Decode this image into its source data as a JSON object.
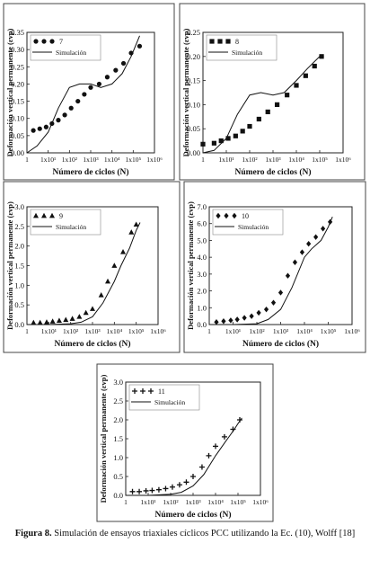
{
  "caption": {
    "label": "Figura 8.",
    "text": "Simulación de ensayos triaxiales cíclicos PCC utilizando la Ec. (10), Wolff [18]"
  },
  "colors": {
    "axis": "#222222",
    "marker": "#111111",
    "line": "#111111"
  },
  "chart_data": [
    {
      "type": "scatter",
      "ylabel": "Deformación vertical permanente (εvp)",
      "xlabel": "Número de ciclos (N)",
      "xscale": "log",
      "xlim": [
        1,
        1000000
      ],
      "xticks": [
        "1",
        "1x10¹",
        "1x10²",
        "1x10³",
        "1x10⁴",
        "1x10⁵",
        "1x10⁶"
      ],
      "ylim": [
        0,
        0.35
      ],
      "yticks": [
        "0.00",
        "0.05",
        "0.10",
        "0.15",
        "0.20",
        "0.25",
        "0.30",
        "0.35"
      ],
      "legend_position": "top-left",
      "series": [
        {
          "name": "7",
          "marker": "circle",
          "x": [
            2,
            4,
            8,
            15,
            30,
            60,
            120,
            250,
            500,
            1000,
            2500,
            6000,
            15000,
            35000,
            80000,
            200000
          ],
          "y": [
            0.065,
            0.07,
            0.075,
            0.085,
            0.095,
            0.11,
            0.13,
            0.15,
            0.17,
            0.19,
            0.2,
            0.22,
            0.24,
            0.26,
            0.29,
            0.31
          ]
        },
        {
          "name": "Simulación",
          "marker": "line",
          "x": [
            1,
            3,
            10,
            30,
            100,
            300,
            1000,
            3000,
            10000,
            30000,
            80000,
            200000
          ],
          "y": [
            0.0,
            0.02,
            0.06,
            0.13,
            0.19,
            0.2,
            0.2,
            0.19,
            0.2,
            0.23,
            0.28,
            0.34
          ]
        }
      ]
    },
    {
      "type": "scatter",
      "ylabel": "Deformación vertical permanente (εvp)",
      "xlabel": "Número de ciclos (N)",
      "xscale": "log",
      "xlim": [
        1,
        1000000
      ],
      "xticks": [
        "1",
        "1x10¹",
        "1x10²",
        "1x10³",
        "1x10⁴",
        "1x10⁵",
        "1x10⁶"
      ],
      "ylim": [
        0,
        0.25
      ],
      "yticks": [
        "0.00",
        "0.05",
        "0.10",
        "0.15",
        "0.20",
        "0.25"
      ],
      "legend_position": "top-left",
      "series": [
        {
          "name": "8",
          "marker": "square",
          "x": [
            1,
            3,
            6,
            12,
            25,
            50,
            100,
            250,
            600,
            1500,
            4000,
            10000,
            25000,
            60000,
            120000
          ],
          "y": [
            0.018,
            0.02,
            0.025,
            0.03,
            0.035,
            0.045,
            0.055,
            0.07,
            0.085,
            0.1,
            0.12,
            0.14,
            0.16,
            0.18,
            0.2
          ]
        },
        {
          "name": "Simulación",
          "marker": "line",
          "x": [
            1,
            3,
            10,
            30,
            100,
            300,
            1000,
            3000,
            10000,
            30000,
            100000,
            150000
          ],
          "y": [
            0.0,
            0.005,
            0.03,
            0.08,
            0.12,
            0.125,
            0.12,
            0.125,
            0.15,
            0.175,
            0.2,
            0.2
          ]
        }
      ]
    },
    {
      "type": "scatter",
      "ylabel": "Deformación vertical permanente (εvp)",
      "xlabel": "Número de ciclos (N)",
      "xscale": "log",
      "xlim": [
        1,
        1000000
      ],
      "xticks": [
        "1",
        "1x10¹",
        "1x10²",
        "1x10³",
        "1x10⁴",
        "1x10⁵",
        "1x10⁶"
      ],
      "ylim": [
        0,
        3.0
      ],
      "yticks": [
        "0.0",
        "0.5",
        "1.0",
        "1.5",
        "2.0",
        "2.5",
        "3.0"
      ],
      "legend_position": "top-left",
      "series": [
        {
          "name": "9",
          "marker": "triangle",
          "x": [
            2,
            4,
            8,
            15,
            30,
            60,
            120,
            250,
            500,
            1000,
            2500,
            5000,
            10000,
            25000,
            60000,
            100000
          ],
          "y": [
            0.05,
            0.05,
            0.06,
            0.08,
            0.1,
            0.12,
            0.15,
            0.2,
            0.3,
            0.4,
            0.75,
            1.1,
            1.5,
            1.85,
            2.35,
            2.55
          ]
        },
        {
          "name": "Simulación",
          "marker": "line",
          "x": [
            1,
            10,
            100,
            300,
            1000,
            3000,
            10000,
            20000,
            50000,
            100000,
            150000
          ],
          "y": [
            0.0,
            0.0,
            0.02,
            0.06,
            0.2,
            0.55,
            1.1,
            1.5,
            1.95,
            2.4,
            2.6
          ]
        }
      ]
    },
    {
      "type": "scatter",
      "ylabel": "Deformación vertical permanente (εvp)",
      "xlabel": "Número de ciclos (N)",
      "xscale": "log",
      "xlim": [
        1,
        1000000
      ],
      "xticks": [
        "1",
        "1x10¹",
        "1x10²",
        "1x10³",
        "1x10⁴",
        "1x10⁵",
        "1x10⁶"
      ],
      "ylim": [
        0,
        7.0
      ],
      "yticks": [
        "0.0",
        "1.0",
        "2.0",
        "3.0",
        "4.0",
        "5.0",
        "6.0",
        "7.0"
      ],
      "legend_position": "top-left",
      "series": [
        {
          "name": "10",
          "marker": "diamond",
          "x": [
            2,
            4,
            8,
            15,
            30,
            60,
            120,
            250,
            500,
            1000,
            2000,
            4000,
            8000,
            15000,
            30000,
            60000,
            120000
          ],
          "y": [
            0.15,
            0.2,
            0.25,
            0.3,
            0.4,
            0.5,
            0.7,
            0.9,
            1.3,
            1.9,
            2.9,
            3.7,
            4.3,
            4.8,
            5.2,
            5.7,
            6.1
          ]
        },
        {
          "name": "Simulación",
          "marker": "line",
          "x": [
            1,
            10,
            100,
            300,
            1000,
            3000,
            10000,
            20000,
            50000,
            100000,
            150000
          ],
          "y": [
            0.0,
            0.0,
            0.05,
            0.3,
            0.9,
            2.2,
            4.0,
            4.5,
            5.0,
            5.8,
            6.4
          ]
        }
      ]
    },
    {
      "type": "scatter",
      "ylabel": "Deformación vertical permanente (εvp)",
      "xlabel": "Número de ciclos (N)",
      "xscale": "log",
      "xlim": [
        1,
        1000000
      ],
      "xticks": [
        "1",
        "1x10¹",
        "1x10²",
        "1x10³",
        "1x10⁴",
        "1x10⁵",
        "1x10⁶"
      ],
      "ylim": [
        0,
        3.0
      ],
      "yticks": [
        "0.0",
        "0.5",
        "1.0",
        "1.5",
        "2.0",
        "2.5",
        "3.0"
      ],
      "legend_position": "top-left",
      "series": [
        {
          "name": "11",
          "marker": "plus",
          "x": [
            2,
            4,
            8,
            15,
            30,
            60,
            120,
            250,
            500,
            1000,
            2500,
            5000,
            10000,
            25000,
            60000,
            120000
          ],
          "y": [
            0.1,
            0.1,
            0.12,
            0.13,
            0.15,
            0.18,
            0.22,
            0.28,
            0.35,
            0.5,
            0.75,
            1.05,
            1.3,
            1.55,
            1.75,
            2.0
          ]
        },
        {
          "name": "Simulación",
          "marker": "line",
          "x": [
            1,
            10,
            100,
            300,
            1000,
            3000,
            10000,
            30000,
            60000,
            100000,
            150000
          ],
          "y": [
            0.0,
            0.0,
            0.03,
            0.08,
            0.25,
            0.55,
            1.05,
            1.45,
            1.7,
            1.9,
            2.05
          ]
        }
      ]
    }
  ]
}
